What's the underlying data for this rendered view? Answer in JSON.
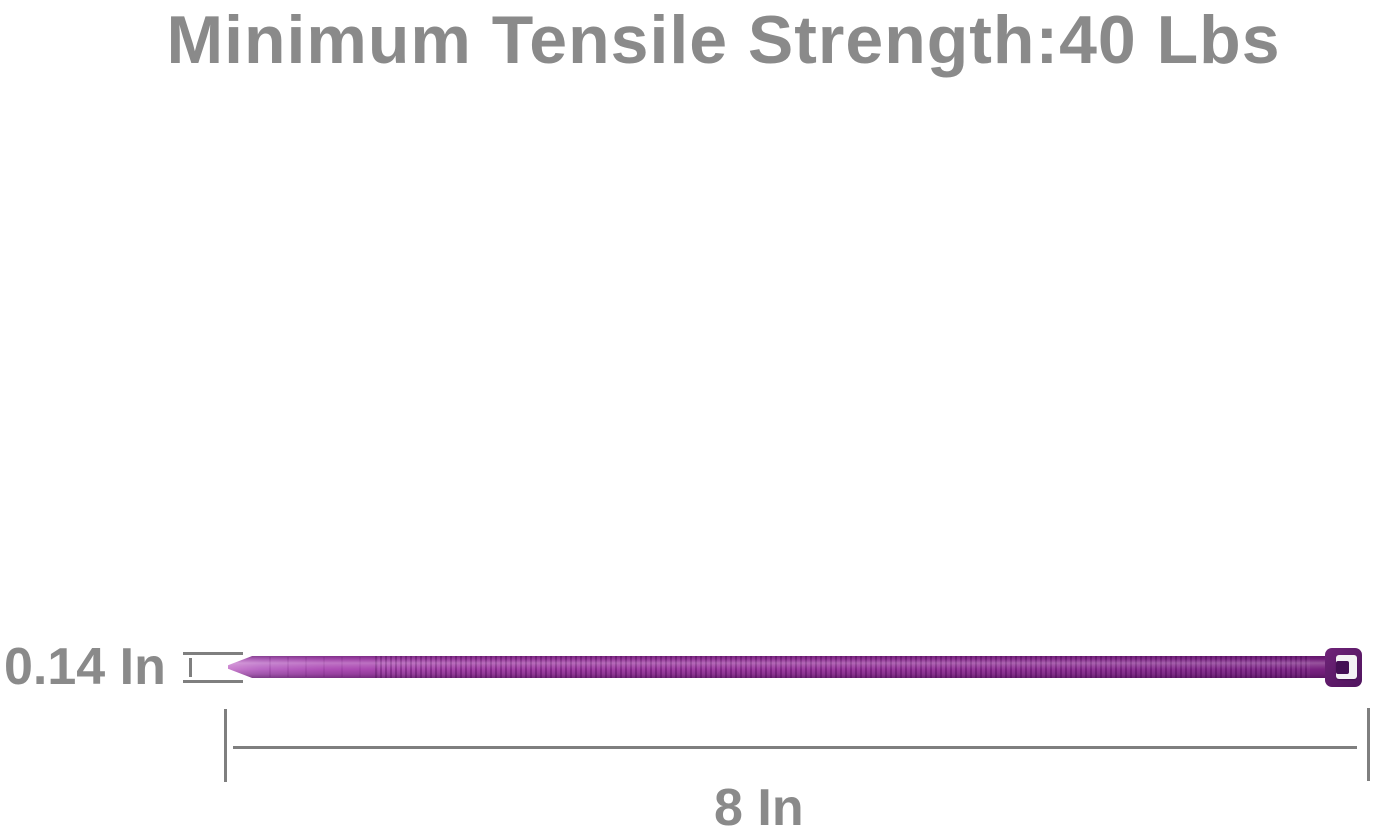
{
  "title": "Minimum Tensile Strength:40 Lbs",
  "dimensions": {
    "thickness": {
      "label": "0.14 In"
    },
    "length": {
      "label": "8 In"
    }
  },
  "product": {
    "type": "cable-tie",
    "color_name": "purple",
    "tensile_strength": "40 Lbs",
    "length": "8 In",
    "width": "0.14 In"
  },
  "colors": {
    "label_text": "#8a8a8a",
    "dimension_lines": "#7f7f7f",
    "tie_tail": "#b968c4",
    "tie_body": "#a03aa4",
    "tie_body_dark": "#7e2488",
    "tie_head": "#5d1a68",
    "tie_head_slot": "#f4f2f4",
    "background": "#ffffff"
  }
}
